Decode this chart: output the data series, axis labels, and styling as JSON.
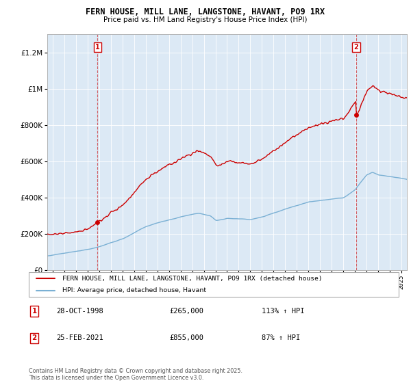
{
  "title": "FERN HOUSE, MILL LANE, LANGSTONE, HAVANT, PO9 1RX",
  "subtitle": "Price paid vs. HM Land Registry's House Price Index (HPI)",
  "legend_line1": "FERN HOUSE, MILL LANE, LANGSTONE, HAVANT, PO9 1RX (detached house)",
  "legend_line2": "HPI: Average price, detached house, Havant",
  "transaction1_label": "1",
  "transaction1_date": "28-OCT-1998",
  "transaction1_price": "£265,000",
  "transaction1_hpi": "113% ↑ HPI",
  "transaction2_label": "2",
  "transaction2_date": "25-FEB-2021",
  "transaction2_price": "£855,000",
  "transaction2_hpi": "87% ↑ HPI",
  "footer": "Contains HM Land Registry data © Crown copyright and database right 2025.\nThis data is licensed under the Open Government Licence v3.0.",
  "ylim": [
    0,
    1300000
  ],
  "yticks": [
    0,
    200000,
    400000,
    600000,
    800000,
    1000000,
    1200000
  ],
  "xlim_start": 1994.5,
  "xlim_end": 2025.5,
  "property_color": "#cc0000",
  "hpi_color": "#7ab0d4",
  "vline_color": "#cc0000",
  "marker1_x": 1998.83,
  "marker1_y": 265000,
  "marker2_x": 2021.12,
  "marker2_y": 855000,
  "background_color": "#ffffff",
  "plot_bg_color": "#dce9f5",
  "grid_color": "#ffffff"
}
